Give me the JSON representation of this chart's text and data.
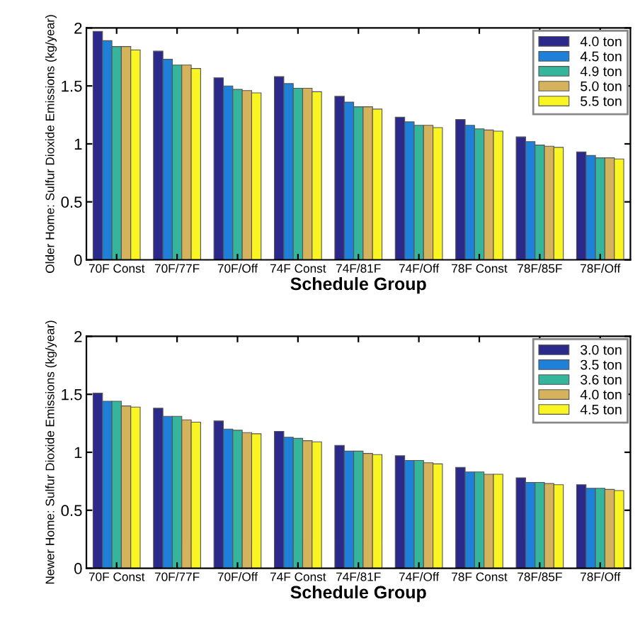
{
  "chart_data": [
    {
      "type": "bar",
      "xlabel": "Schedule Group",
      "ylabel": "Older Home: Sulfur Dioxide Emissions (kg/year)",
      "categories": [
        "70F Const",
        "70F/77F",
        "70F/Off",
        "74F Const",
        "74F/81F",
        "74F/Off",
        "78F Const",
        "78F/85F",
        "78F/Off"
      ],
      "ylim": [
        0,
        2
      ],
      "yticks": [
        0,
        0.5,
        1,
        1.5,
        2
      ],
      "legend": "top right",
      "series": [
        {
          "name": "4.0 ton",
          "color": "#2b2a8a",
          "values": [
            1.97,
            1.8,
            1.57,
            1.58,
            1.41,
            1.23,
            1.21,
            1.06,
            0.93
          ]
        },
        {
          "name": "4.5 ton",
          "color": "#1f80d9",
          "values": [
            1.89,
            1.73,
            1.5,
            1.52,
            1.36,
            1.19,
            1.16,
            1.02,
            0.9
          ]
        },
        {
          "name": "4.9 ton",
          "color": "#35b59c",
          "values": [
            1.84,
            1.68,
            1.47,
            1.48,
            1.32,
            1.16,
            1.13,
            0.99,
            0.88
          ]
        },
        {
          "name": "5.0 ton",
          "color": "#d5b35c",
          "values": [
            1.84,
            1.68,
            1.46,
            1.48,
            1.32,
            1.16,
            1.12,
            0.98,
            0.88
          ]
        },
        {
          "name": "5.5 ton",
          "color": "#f8f522",
          "values": [
            1.81,
            1.65,
            1.44,
            1.45,
            1.3,
            1.14,
            1.11,
            0.97,
            0.87
          ]
        }
      ]
    },
    {
      "type": "bar",
      "xlabel": "Schedule Group",
      "ylabel": "Newer Home: Sulfur Dioxide Emissions (kg/year)",
      "categories": [
        "70F Const",
        "70F/77F",
        "70F/Off",
        "74F Const",
        "74F/81F",
        "74F/Off",
        "78F Const",
        "78F/85F",
        "78F/Off"
      ],
      "ylim": [
        0,
        2
      ],
      "yticks": [
        0,
        0.5,
        1,
        1.5,
        2
      ],
      "legend": "top right",
      "series": [
        {
          "name": "3.0 ton",
          "color": "#2b2a8a",
          "values": [
            1.51,
            1.38,
            1.27,
            1.18,
            1.06,
            0.97,
            0.87,
            0.78,
            0.72
          ]
        },
        {
          "name": "3.5 ton",
          "color": "#1f80d9",
          "values": [
            1.44,
            1.31,
            1.2,
            1.13,
            1.01,
            0.93,
            0.83,
            0.74,
            0.69
          ]
        },
        {
          "name": "3.6 ton",
          "color": "#35b59c",
          "values": [
            1.44,
            1.31,
            1.19,
            1.12,
            1.01,
            0.93,
            0.83,
            0.74,
            0.69
          ]
        },
        {
          "name": "4.0 ton",
          "color": "#d5b35c",
          "values": [
            1.4,
            1.28,
            1.17,
            1.1,
            0.99,
            0.91,
            0.81,
            0.73,
            0.68
          ]
        },
        {
          "name": "4.5 ton",
          "color": "#f8f522",
          "values": [
            1.39,
            1.26,
            1.16,
            1.09,
            0.98,
            0.9,
            0.81,
            0.72,
            0.67
          ]
        }
      ]
    }
  ]
}
